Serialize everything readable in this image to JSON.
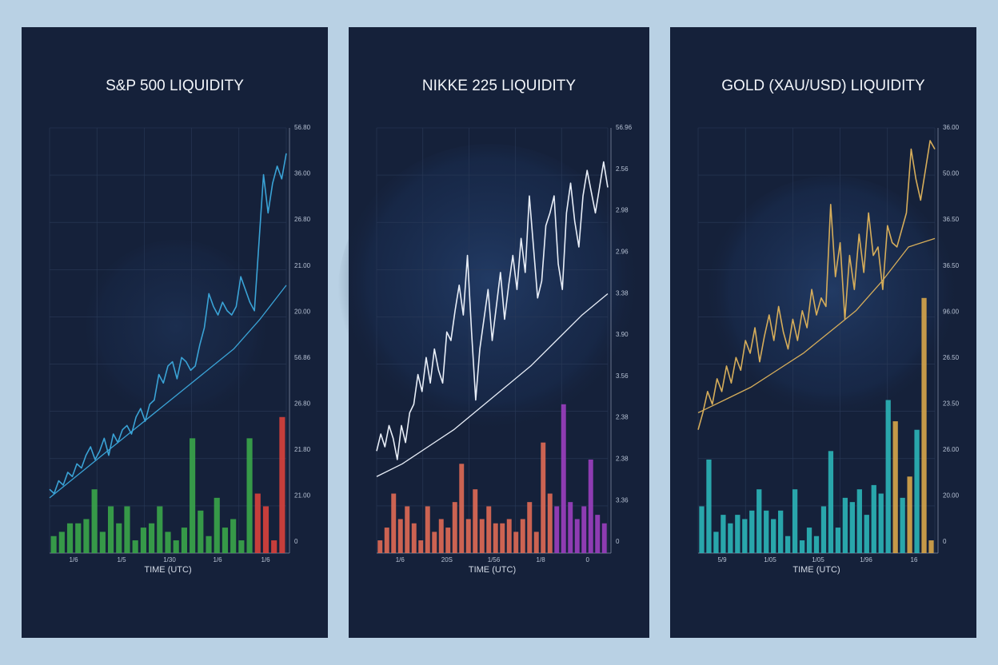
{
  "chart_data": [
    {
      "type": "bar-line",
      "title": "S&P 500 LIQUIDITY",
      "xlabel": "TIME (UTC)",
      "ylim": [
        0,
        100
      ],
      "y_axis_labels": [
        "56.80",
        "36.00",
        "26.80",
        "21.00",
        "20.00",
        "56.86",
        "26.80",
        "21.80",
        "21.00",
        "0"
      ],
      "x_axis_labels": [
        "1/6",
        "1/5",
        "1/30",
        "1/6",
        "1/6"
      ],
      "bar_groups": [
        {
          "color": "#3aa64a",
          "values": [
            4,
            5,
            7,
            7,
            8,
            15,
            5,
            11,
            7,
            11,
            3,
            6,
            7,
            11,
            5,
            3,
            6,
            27,
            10,
            4,
            13,
            6,
            8,
            3,
            27
          ]
        },
        {
          "color": "#d9413c",
          "values": [
            14,
            11,
            3,
            32
          ]
        }
      ],
      "price": {
        "color": "#3aa3d6",
        "values": [
          15,
          14,
          17,
          16,
          19,
          18,
          21,
          20,
          23,
          25,
          22,
          24,
          27,
          23,
          28,
          26,
          29,
          30,
          28,
          32,
          34,
          31,
          35,
          36,
          42,
          40,
          44,
          45,
          41,
          46,
          45,
          43,
          44,
          49,
          53,
          61,
          58,
          56,
          59,
          57,
          56,
          58,
          65,
          62,
          59,
          57,
          73,
          89,
          80,
          87,
          91,
          88,
          94
        ]
      },
      "trend": {
        "color": "#3aa3d6",
        "values": [
          13,
          18,
          23,
          28,
          33,
          38,
          43,
          48,
          55,
          63
        ]
      }
    },
    {
      "type": "bar-line",
      "title": "NIKKE 225 LIQUIDITY",
      "xlabel": "TIME (UTC)",
      "ylim": [
        0,
        100
      ],
      "y_axis_labels": [
        "56.96",
        "2.56",
        "2.98",
        "2.96",
        "3.38",
        "3.90",
        "3.56",
        "2.38",
        "2.38",
        "3.36",
        "0"
      ],
      "x_axis_labels": [
        "1/6",
        "20S",
        "1/56",
        "1/8",
        "0"
      ],
      "bar_groups": [
        {
          "color": "#e06a55",
          "values": [
            3,
            6,
            14,
            8,
            11,
            7,
            3,
            11,
            5,
            8,
            6,
            12,
            21,
            8,
            15,
            8,
            11,
            7,
            7,
            8,
            5,
            8,
            12,
            5,
            26,
            14
          ]
        },
        {
          "color": "#9b3fc0",
          "values": [
            11,
            35,
            12,
            8,
            11,
            22,
            9,
            7
          ]
        }
      ],
      "price": {
        "color": "#e8eef8",
        "values": [
          24,
          28,
          25,
          30,
          27,
          22,
          30,
          26,
          33,
          35,
          42,
          38,
          46,
          40,
          48,
          43,
          40,
          52,
          50,
          57,
          63,
          56,
          70,
          52,
          36,
          48,
          55,
          62,
          50,
          58,
          66,
          55,
          63,
          70,
          62,
          74,
          66,
          84,
          72,
          60,
          64,
          77,
          80,
          84,
          68,
          62,
          80,
          87,
          78,
          72,
          84,
          90,
          85,
          80,
          86,
          92,
          86
        ]
      },
      "trend": {
        "color": "#e8eef8",
        "values": [
          18,
          21,
          25,
          29,
          34,
          39,
          44,
          50,
          56,
          61
        ]
      }
    },
    {
      "type": "bar-line",
      "title": "GOLD (XAU/USD) LIQUIDITY",
      "xlabel": "TIME (UTC)",
      "ylim": [
        0,
        100
      ],
      "y_axis_labels": [
        "36.00",
        "50.00",
        "36.50",
        "36.50",
        "96.00",
        "26.50",
        "23.50",
        "26.00",
        "20.00",
        "0"
      ],
      "x_axis_labels": [
        "5/9",
        "1/05",
        "1/05",
        "1/96",
        "16"
      ],
      "bar_groups": [
        {
          "color": "#2bb5b8",
          "values": [
            11,
            22,
            5,
            9,
            7,
            9,
            8,
            10,
            15,
            10,
            8,
            10,
            4,
            15,
            3,
            6,
            4,
            11,
            24,
            6,
            13,
            12,
            15,
            9,
            16,
            14,
            36
          ]
        },
        {
          "color": "#d8a64a",
          "values": [
            31
          ]
        },
        {
          "color": "#2bb5b8",
          "values": [
            13
          ]
        },
        {
          "color": "#d8a64a",
          "values": [
            18
          ]
        },
        {
          "color": "#2bb5b8",
          "values": [
            29
          ]
        },
        {
          "color": "#d8a64a",
          "values": [
            60,
            3
          ]
        }
      ],
      "price": {
        "color": "#d6ad5a",
        "values": [
          29,
          33,
          38,
          35,
          41,
          38,
          44,
          40,
          46,
          43,
          50,
          47,
          53,
          45,
          51,
          56,
          50,
          58,
          52,
          48,
          55,
          50,
          57,
          53,
          62,
          56,
          60,
          58,
          82,
          65,
          73,
          55,
          70,
          62,
          75,
          66,
          80,
          70,
          72,
          62,
          77,
          73,
          72,
          76,
          80,
          95,
          88,
          83,
          90,
          97,
          95
        ]
      },
      "trend": {
        "color": "#d6ad5a",
        "values": [
          33,
          36,
          39,
          43,
          47,
          52,
          57,
          64,
          72,
          74
        ]
      }
    }
  ]
}
